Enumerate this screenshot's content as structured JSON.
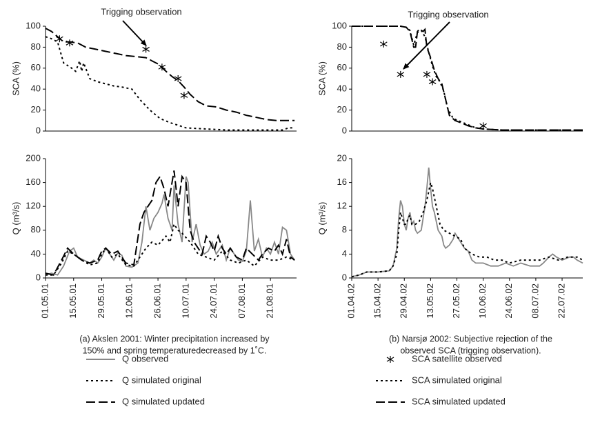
{
  "chart_data": [
    {
      "type": "line",
      "ylabel": "SCA (%)",
      "annotation": "Trigging observation",
      "xlim": [
        0,
        125
      ],
      "ylim": [
        0,
        100
      ],
      "yticks": [
        0,
        20,
        40,
        60,
        80,
        100
      ],
      "series": [
        {
          "color": "#000000",
          "line_style": "dashed",
          "x": [
            0,
            3,
            6,
            9,
            12,
            16,
            20,
            25,
            30,
            35,
            40,
            45,
            50,
            53,
            56,
            60,
            63,
            66,
            69,
            72,
            76,
            80,
            85,
            90,
            95,
            100,
            105,
            110,
            115,
            120,
            124
          ],
          "values": [
            98,
            95,
            90,
            85,
            85,
            84,
            80,
            78,
            76,
            74,
            72,
            71,
            70,
            67,
            64,
            57,
            52,
            48,
            42,
            35,
            28,
            24,
            23,
            20,
            18,
            15,
            13,
            11,
            10,
            10,
            10
          ]
        },
        {
          "color": "#000000",
          "line_style": "dotted",
          "x": [
            0,
            3,
            6,
            9,
            13,
            15,
            17,
            18,
            19,
            22,
            26,
            30,
            34,
            38,
            43,
            47,
            52,
            57,
            62,
            70,
            80,
            90,
            100,
            110,
            118,
            121,
            124
          ],
          "values": [
            90,
            88,
            85,
            65,
            60,
            57,
            67,
            57,
            65,
            50,
            47,
            45,
            43,
            42,
            40,
            30,
            20,
            12,
            8,
            3,
            2,
            1,
            1,
            1,
            1,
            3,
            3
          ]
        },
        {
          "color": "#000000",
          "line_style": "none",
          "marker": "asterisk",
          "x": [
            7,
            12,
            50,
            58,
            66,
            69
          ],
          "values": [
            88,
            84,
            78,
            61,
            50,
            34
          ]
        }
      ]
    },
    {
      "type": "line",
      "ylabel": "SCA (%)",
      "annotation": "Trigging observation",
      "legend": "below",
      "xlim": [
        0,
        123
      ],
      "ylim": [
        0,
        100
      ],
      "yticks": [
        0,
        20,
        40,
        60,
        80,
        100
      ],
      "series": [
        {
          "name": "SCA satellite observed",
          "color": "#000000",
          "line_style": "none",
          "marker": "asterisk",
          "x": [
            17,
            26,
            40,
            43,
            70
          ],
          "values": [
            83,
            54,
            54,
            47,
            5
          ]
        },
        {
          "name": "SCA simulated original",
          "color": "#000000",
          "line_style": "dotted",
          "x": [
            0,
            26,
            29,
            31,
            33,
            35,
            37,
            39,
            41,
            43,
            45,
            47,
            49,
            51,
            54,
            58,
            62,
            66,
            70,
            80,
            123
          ],
          "values": [
            100,
            100,
            99,
            96,
            82,
            94,
            96,
            90,
            75,
            62,
            52,
            47,
            38,
            22,
            12,
            9,
            6,
            3,
            2,
            1,
            1
          ]
        },
        {
          "name": "SCA simulated updated",
          "color": "#000000",
          "line_style": "dashed",
          "x": [
            0,
            26,
            29,
            31,
            33,
            34,
            35,
            36,
            38,
            39,
            40,
            42,
            44,
            46,
            48,
            50,
            52,
            55,
            58,
            62,
            66,
            70,
            80,
            90,
            123
          ],
          "values": [
            100,
            100,
            99,
            95,
            80,
            80,
            95,
            97,
            95,
            97,
            80,
            70,
            58,
            50,
            45,
            30,
            15,
            10,
            8,
            5,
            3,
            2,
            1,
            1,
            1
          ]
        }
      ]
    },
    {
      "type": "line",
      "ylabel": "Q (m³/s)",
      "legend": "below",
      "caption": [
        "(a) Akslen 2001: Winter precipitation increased by",
        "150% and spring temperaturedecreased by 1˚C."
      ],
      "xlim": [
        0,
        125
      ],
      "ylim": [
        0,
        200
      ],
      "yticks": [
        0,
        40,
        80,
        120,
        160,
        200
      ],
      "xticks": [
        {
          "value": 0,
          "label": "01.05.01"
        },
        {
          "value": 14,
          "label": "15.05.01"
        },
        {
          "value": 28,
          "label": "29.05.01"
        },
        {
          "value": 42,
          "label": "12.06.01"
        },
        {
          "value": 56,
          "label": "26.06.01"
        },
        {
          "value": 70,
          "label": "10.07.01"
        },
        {
          "value": 84,
          "label": "24.07.01"
        },
        {
          "value": 98,
          "label": "07.08.01"
        },
        {
          "value": 112,
          "label": "21.08.01"
        }
      ],
      "series": [
        {
          "name": "Q observed",
          "color": "#888888",
          "line_style": "solid",
          "x": [
            0,
            3,
            6,
            9,
            12,
            14,
            16,
            19,
            22,
            24,
            26,
            28,
            30,
            32,
            34,
            36,
            38,
            40,
            43,
            46,
            48,
            50,
            52,
            54,
            56,
            58,
            59,
            61,
            63,
            64,
            66,
            68,
            70,
            71,
            73,
            75,
            77,
            79,
            81,
            83,
            85,
            88,
            90,
            92,
            94,
            96,
            98,
            100,
            102,
            104,
            106,
            108,
            110,
            112,
            114,
            116,
            118,
            120,
            122,
            124
          ],
          "values": [
            5,
            8,
            5,
            20,
            45,
            50,
            35,
            30,
            25,
            30,
            25,
            35,
            50,
            40,
            30,
            42,
            38,
            20,
            18,
            25,
            60,
            120,
            80,
            100,
            110,
            125,
            140,
            100,
            80,
            155,
            90,
            60,
            170,
            160,
            60,
            90,
            55,
            40,
            45,
            60,
            40,
            55,
            30,
            50,
            40,
            30,
            28,
            45,
            130,
            45,
            65,
            35,
            50,
            40,
            60,
            40,
            85,
            80,
            40,
            30
          ]
        },
        {
          "name": "Q simulated original",
          "color": "#000000",
          "line_style": "dotted",
          "x": [
            0,
            4,
            8,
            11,
            14,
            18,
            22,
            26,
            28,
            30,
            33,
            36,
            40,
            44,
            47,
            50,
            53,
            56,
            60,
            62,
            64,
            66,
            68,
            72,
            76,
            80,
            84,
            88,
            92,
            96,
            100,
            104,
            108,
            112,
            116,
            120,
            124
          ],
          "values": [
            5,
            5,
            25,
            45,
            40,
            30,
            22,
            25,
            40,
            50,
            35,
            40,
            22,
            20,
            35,
            50,
            60,
            55,
            70,
            60,
            90,
            80,
            75,
            60,
            40,
            35,
            30,
            45,
            30,
            25,
            30,
            20,
            35,
            30,
            30,
            35,
            30
          ]
        },
        {
          "name": "Q simulated updated",
          "color": "#000000",
          "line_style": "dashed",
          "x": [
            0,
            4,
            8,
            11,
            14,
            18,
            22,
            26,
            28,
            30,
            33,
            36,
            40,
            44,
            47,
            49,
            51,
            53,
            55,
            57,
            59,
            61,
            64,
            66,
            68,
            70,
            72,
            74,
            76,
            78,
            80,
            82,
            84,
            86,
            88,
            90,
            92,
            95,
            98,
            100,
            103,
            106,
            108,
            111,
            114,
            116,
            118,
            120,
            122,
            124
          ],
          "values": [
            8,
            5,
            30,
            50,
            40,
            30,
            25,
            30,
            45,
            50,
            40,
            45,
            25,
            22,
            90,
            110,
            120,
            130,
            160,
            170,
            150,
            120,
            180,
            120,
            170,
            160,
            80,
            60,
            50,
            40,
            70,
            60,
            45,
            70,
            50,
            40,
            50,
            35,
            30,
            50,
            40,
            30,
            40,
            50,
            45,
            55,
            40,
            65,
            35,
            30
          ]
        }
      ]
    },
    {
      "type": "line",
      "ylabel": "Q (m³/s)",
      "caption": [
        "(b) Narsjø 2002: Subjective rejection of the",
        "observed SCA (trigging observation)."
      ],
      "xlim": [
        0,
        123
      ],
      "ylim": [
        0,
        20
      ],
      "yticks": [
        0,
        4,
        8,
        12,
        16,
        20
      ],
      "xticks": [
        {
          "value": 0,
          "label": "01.04.02"
        },
        {
          "value": 14,
          "label": "15.04.02"
        },
        {
          "value": 28,
          "label": "29.04.02"
        },
        {
          "value": 42,
          "label": "13.05.02"
        },
        {
          "value": 56,
          "label": "27.05.02"
        },
        {
          "value": 70,
          "label": "10.06.02"
        },
        {
          "value": 84,
          "label": "24.06.02"
        },
        {
          "value": 98,
          "label": "08.07.02"
        },
        {
          "value": 112,
          "label": "22.07.02"
        }
      ],
      "series": [
        {
          "color": "#888888",
          "line_style": "solid",
          "x": [
            0,
            4,
            8,
            14,
            20,
            22,
            24,
            25,
            26,
            27,
            28,
            29,
            30,
            31,
            32,
            33,
            34,
            35,
            37,
            39,
            40,
            41,
            42,
            43,
            44,
            46,
            48,
            49,
            50,
            52,
            54,
            55,
            56,
            58,
            60,
            62,
            64,
            66,
            70,
            74,
            78,
            82,
            86,
            90,
            95,
            100,
            102,
            105,
            107,
            109,
            112,
            116,
            118,
            120,
            123
          ],
          "values": [
            0.2,
            0.5,
            1,
            1,
            1.2,
            2,
            5,
            10,
            13,
            12,
            9,
            8,
            10,
            11,
            9,
            9.5,
            8,
            7.5,
            8,
            12,
            15,
            18.5,
            15,
            12,
            11,
            8,
            7,
            5.5,
            5,
            5.5,
            6.5,
            7.5,
            7,
            6,
            5,
            4.5,
            3,
            2.5,
            2.5,
            2,
            2,
            2.5,
            2,
            2.5,
            2,
            2,
            2.5,
            3.5,
            4,
            3.5,
            3,
            3.5,
            3.5,
            3,
            2.5
          ]
        },
        {
          "color": "#000000",
          "line_style": "dotted",
          "x": [
            0,
            4,
            8,
            14,
            20,
            22,
            24,
            25,
            26,
            27,
            28,
            29,
            30,
            31,
            32,
            34,
            36,
            38,
            40,
            42,
            43,
            45,
            47,
            49,
            52,
            55,
            58,
            60,
            64,
            68,
            72,
            76,
            80,
            84,
            90,
            96,
            100,
            105,
            110,
            115,
            120,
            123
          ],
          "values": [
            0.2,
            0.5,
            1,
            1,
            1.2,
            2,
            4,
            8,
            11,
            10,
            9,
            9,
            10,
            10.5,
            9,
            9,
            9.5,
            11,
            13,
            16,
            15,
            12,
            9,
            8,
            7.5,
            7,
            6.5,
            5,
            4,
            3.5,
            3.5,
            3,
            3,
            2.5,
            3,
            3,
            3,
            3.5,
            3,
            3.5,
            3.5,
            3
          ]
        }
      ]
    }
  ]
}
